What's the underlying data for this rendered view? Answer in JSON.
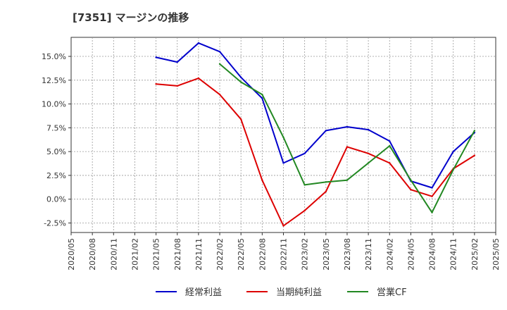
{
  "chart_data": {
    "type": "line",
    "title": "[7351]  マージンの推移",
    "xlabel": "",
    "ylabel": "",
    "ylim": [
      -3.5,
      17
    ],
    "yticks": [
      -2.5,
      0.0,
      2.5,
      5.0,
      7.5,
      10.0,
      12.5,
      15.0
    ],
    "ytick_labels": [
      "-2.5%",
      "0.0%",
      "2.5%",
      "5.0%",
      "7.5%",
      "10.0%",
      "12.5%",
      "15.0%"
    ],
    "x_ticks": [
      "2020/05",
      "2020/08",
      "2020/11",
      "2021/02",
      "2021/05",
      "2021/08",
      "2021/11",
      "2022/02",
      "2022/05",
      "2022/08",
      "2022/11",
      "2023/02",
      "2023/05",
      "2023/08",
      "2023/11",
      "2024/02",
      "2024/05",
      "2024/08",
      "2024/11",
      "2025/02",
      "2025/05"
    ],
    "grid": true,
    "legend_position": "bottom",
    "series": [
      {
        "name": "経常利益",
        "color": "#0000cc",
        "x": [
          "2021/05",
          "2021/08",
          "2021/11",
          "2022/02",
          "2022/05",
          "2022/08",
          "2022/11",
          "2023/02",
          "2023/05",
          "2023/08",
          "2023/11",
          "2024/02",
          "2024/05",
          "2024/08",
          "2024/11",
          "2025/02"
        ],
        "values": [
          14.9,
          14.4,
          16.4,
          15.5,
          12.8,
          10.6,
          3.8,
          4.8,
          7.2,
          7.6,
          7.3,
          6.1,
          1.9,
          1.2,
          5.0,
          7.0
        ]
      },
      {
        "name": "当期純利益",
        "color": "#dd0000",
        "x": [
          "2021/05",
          "2021/08",
          "2021/11",
          "2022/02",
          "2022/05",
          "2022/08",
          "2022/11",
          "2023/02",
          "2023/05",
          "2023/08",
          "2023/11",
          "2024/02",
          "2024/05",
          "2024/08",
          "2024/11",
          "2025/02"
        ],
        "values": [
          12.1,
          11.9,
          12.7,
          11.0,
          8.4,
          2.0,
          -2.8,
          -1.2,
          0.8,
          5.5,
          4.8,
          3.8,
          1.0,
          0.3,
          3.2,
          4.6
        ]
      },
      {
        "name": "営業CF",
        "color": "#228822",
        "x": [
          "2022/02",
          "2022/05",
          "2022/08",
          "2022/11",
          "2023/02",
          "2023/05",
          "2023/08",
          "2023/11",
          "2024/02",
          "2024/05",
          "2024/08",
          "2024/11",
          "2025/02"
        ],
        "values": [
          14.2,
          12.3,
          11.0,
          6.5,
          1.5,
          1.8,
          2.0,
          3.8,
          5.6,
          2.0,
          -1.4,
          3.1,
          7.2
        ]
      }
    ]
  }
}
